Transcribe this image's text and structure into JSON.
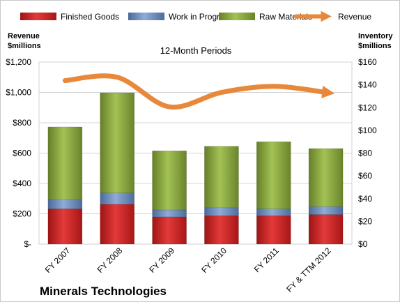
{
  "chart_data": {
    "type": "bar",
    "stacked": true,
    "subtitle": "12-Month Periods",
    "company": "Minerals Technologies",
    "categories": [
      "FY 2007",
      "FY 2008",
      "FY 2009",
      "FY 2010",
      "FY 2011",
      "FY & TTM 2012"
    ],
    "y_left": {
      "label_line1": "Revenue",
      "label_line2": "$millions",
      "ticks": [
        "$-",
        "$200",
        "$400",
        "$600",
        "$800",
        "$1,000",
        "$1,200"
      ],
      "lim": [
        0,
        1200
      ]
    },
    "y_right": {
      "label_line1": "Inventory",
      "label_line2": "$millions",
      "ticks": [
        "$0",
        "$20",
        "$40",
        "$60",
        "$80",
        "$100",
        "$120",
        "$140",
        "$160"
      ],
      "lim": [
        0,
        160
      ]
    },
    "series": [
      {
        "name": "Finished Goods",
        "axis": "right",
        "color": "#cc1f1f",
        "values": [
          31,
          35,
          24,
          25,
          25,
          26
        ]
      },
      {
        "name": "Work in Progress",
        "axis": "right",
        "color": "#6b8cbf",
        "values": [
          8,
          10,
          6,
          7,
          6,
          7
        ]
      },
      {
        "name": "Raw Materials",
        "axis": "right",
        "color": "#8aa83e",
        "values": [
          64,
          88,
          52,
          54,
          59,
          51
        ]
      },
      {
        "name": "Revenue",
        "axis": "left",
        "type": "line",
        "color": "#e8883a",
        "values": [
          1078,
          1100,
          905,
          1000,
          1040,
          1000
        ]
      }
    ],
    "grid": true,
    "legend": "top"
  }
}
